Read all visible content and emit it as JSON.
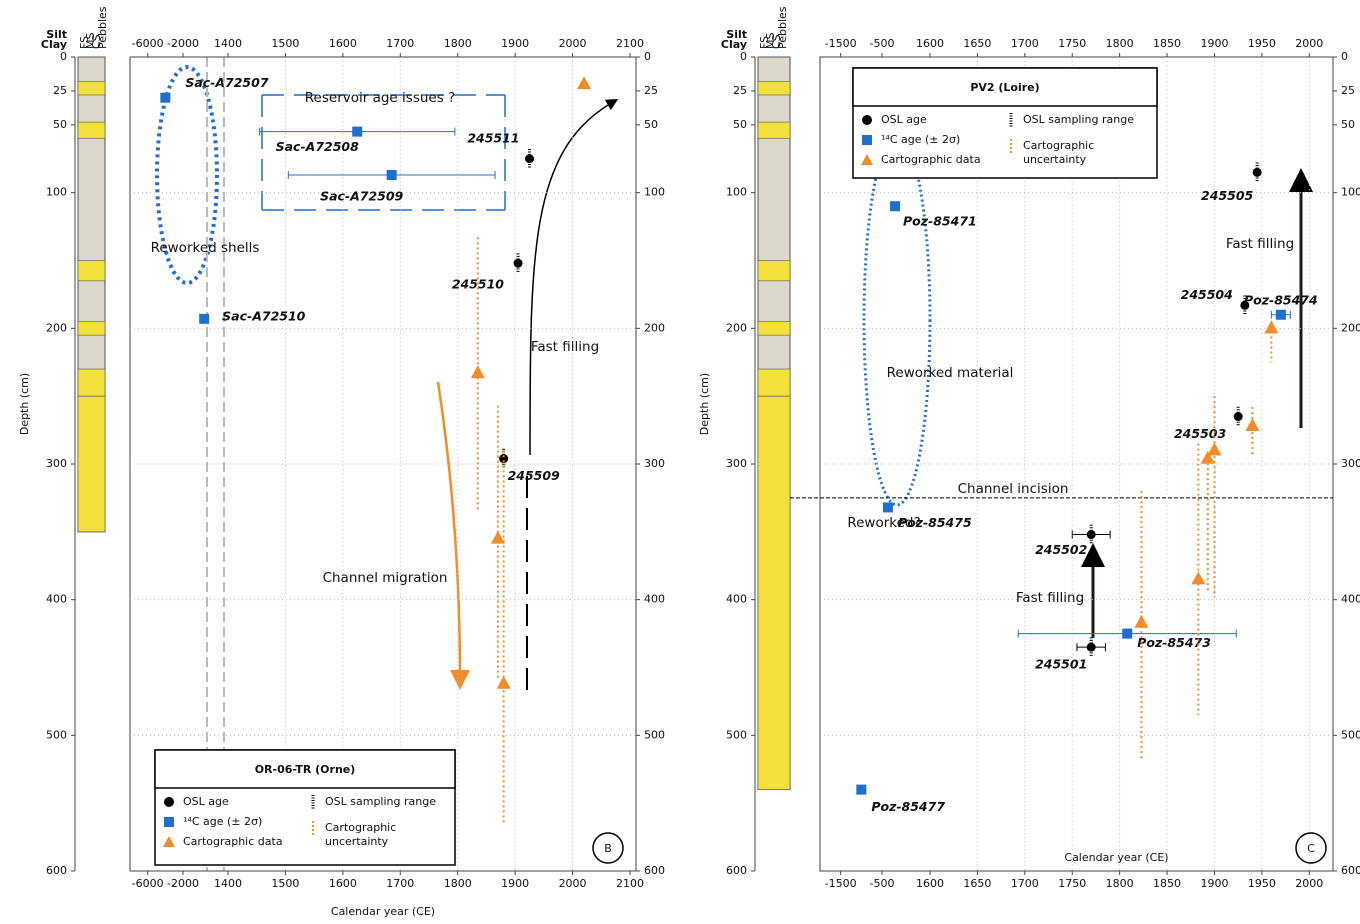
{
  "chart_data": [
    {
      "type": "scatter",
      "title": "OR-06-TR (Orne)",
      "panel_label": "B",
      "xlabel": "Calendar year (CE)",
      "ylabel": "Depth (cm)",
      "lithology_scale": [
        "Silt",
        "Clay",
        "FS",
        "MS",
        "CS",
        "Pebbles"
      ],
      "xlim": [
        -8000,
        2100
      ],
      "xbreak": [
        -2000,
        1400
      ],
      "xticks": [
        -6000,
        -2000,
        1400,
        1500,
        1600,
        1700,
        1800,
        1900,
        2000,
        2100
      ],
      "ylim": [
        0,
        600
      ],
      "yticks": [
        0,
        25,
        50,
        100,
        200,
        300,
        400,
        500,
        600
      ],
      "grid": true,
      "series": [
        {
          "name": "OSL age",
          "color": "#000000",
          "marker": "circle",
          "x": [
            1925,
            1905,
            1880
          ],
          "y": [
            75,
            152,
            296
          ],
          "yerr": [
            5,
            5,
            5
          ],
          "labels": [
            "245511",
            "245510",
            "245509"
          ]
        },
        {
          "name": "¹⁴C age  (± 2σ)",
          "color": "#1f6fd1",
          "marker": "square",
          "x": [
            -4000,
            1625,
            1685,
            -400
          ],
          "y": [
            30,
            55,
            87,
            193
          ],
          "xerr": [
            null,
            170,
            180,
            null
          ],
          "labels": [
            "Sac-A72507",
            "Sac-A72508",
            "Sac-A72509",
            "Sac-A72510"
          ]
        },
        {
          "name": "Cartographic data",
          "color": "#f28c28",
          "marker": "triangle",
          "x": [
            2020,
            1835,
            1870,
            1880
          ],
          "y": [
            20,
            233,
            355,
            462
          ],
          "yrange": [
            null,
            [
              133,
              335
            ],
            [
              257,
              458
            ],
            [
              290,
              565
            ]
          ]
        }
      ],
      "legend_extra": [
        "OSL sampling range",
        "Cartographic uncertainty"
      ],
      "annotations": [
        "Reservoir age issues ?",
        "Reworked shells",
        "Fast filling",
        "Channel migration"
      ]
    },
    {
      "type": "scatter",
      "title": "PV2 (Loire)",
      "panel_label": "C",
      "xlabel": "Calendar year (CE)",
      "ylabel": "Depth (cm)",
      "lithology_scale": [
        "Silt",
        "Clay",
        "FS",
        "MS",
        "CS",
        "Pebbles"
      ],
      "xlim": [
        -2000,
        2025
      ],
      "xbreak": [
        -500,
        1600
      ],
      "xticks": [
        -1500,
        -500,
        1600,
        1650,
        1700,
        1750,
        1800,
        1850,
        1900,
        1950,
        2000
      ],
      "ylim": [
        0,
        600
      ],
      "yticks": [
        0,
        25,
        50,
        100,
        200,
        300,
        400,
        500,
        600
      ],
      "grid": true,
      "series": [
        {
          "name": "OSL age",
          "color": "#000000",
          "marker": "circle",
          "x": [
            1945,
            1932,
            1925,
            1770,
            1770
          ],
          "y": [
            85,
            183,
            265,
            352,
            435
          ],
          "yerr": [
            5,
            5,
            5,
            5,
            5
          ],
          "xerr": [
            null,
            null,
            null,
            20,
            15
          ],
          "labels": [
            "245505",
            "245504",
            "245503",
            "245502",
            "245501"
          ]
        },
        {
          "name": "¹⁴C age  (± 2σ)",
          "color": "#1f6fd1",
          "marker": "square",
          "x": [
            70,
            1970,
            -240,
            1808,
            -1000
          ],
          "y": [
            110,
            190,
            332,
            425,
            540
          ],
          "xerr": [
            null,
            10,
            null,
            115,
            null
          ],
          "labels": [
            "Poz-85471",
            "Poz-85474",
            "Poz-85475",
            "Poz-85473",
            "Poz-85477"
          ]
        },
        {
          "name": "Cartographic data",
          "color": "#f28c28",
          "marker": "triangle",
          "x": [
            1960,
            1940,
            1900,
            1893,
            1883,
            1823
          ],
          "y": [
            200,
            272,
            290,
            296,
            385,
            417
          ],
          "yrange": [
            [
              195,
              225
            ],
            [
              258,
              295
            ],
            [
              250,
              398
            ],
            [
              292,
              395
            ],
            [
              285,
              485
            ],
            [
              320,
              518
            ]
          ]
        }
      ],
      "legend_extra": [
        "OSL sampling range",
        "Cartographic uncertainty"
      ],
      "hline": {
        "label": "Channel incision",
        "value": 325
      },
      "annotations": [
        "Reworked material",
        "Fast filling",
        "Fast filling",
        "Reworked?"
      ]
    }
  ]
}
